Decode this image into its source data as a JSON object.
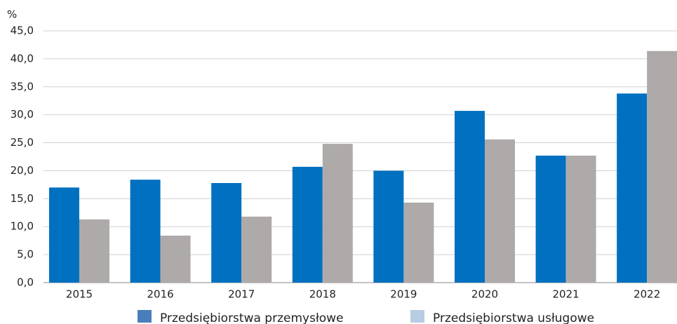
{
  "chart_data": {
    "type": "bar",
    "y_unit": "%",
    "categories": [
      "2015",
      "2016",
      "2017",
      "2018",
      "2019",
      "2020",
      "2021",
      "2022"
    ],
    "series": [
      {
        "name": "Przedsiębiorstwa przemysłowe",
        "color": "#0070c0",
        "legend_color": "#4a7ebb",
        "values": [
          17.0,
          18.4,
          17.8,
          20.7,
          20.0,
          30.7,
          22.7,
          33.8
        ]
      },
      {
        "name": "Przedsiębiorstwa usługowe",
        "color": "#aeaaaa",
        "legend_color": "#b8cce4",
        "values": [
          11.3,
          8.4,
          11.8,
          24.8,
          14.3,
          25.6,
          22.7,
          41.4
        ]
      }
    ],
    "ylim": [
      0,
      45
    ],
    "yticks": [
      {
        "value": 0,
        "label": "0,0"
      },
      {
        "value": 5,
        "label": "5,0"
      },
      {
        "value": 10,
        "label": "10,0"
      },
      {
        "value": 15,
        "label": "15,0"
      },
      {
        "value": 20,
        "label": "20,0"
      },
      {
        "value": 25,
        "label": "25,0"
      },
      {
        "value": 30,
        "label": "30,0"
      },
      {
        "value": 35,
        "label": "35,0"
      },
      {
        "value": 40,
        "label": "40,0"
      },
      {
        "value": 45,
        "label": "45,0"
      }
    ],
    "grid": true
  }
}
